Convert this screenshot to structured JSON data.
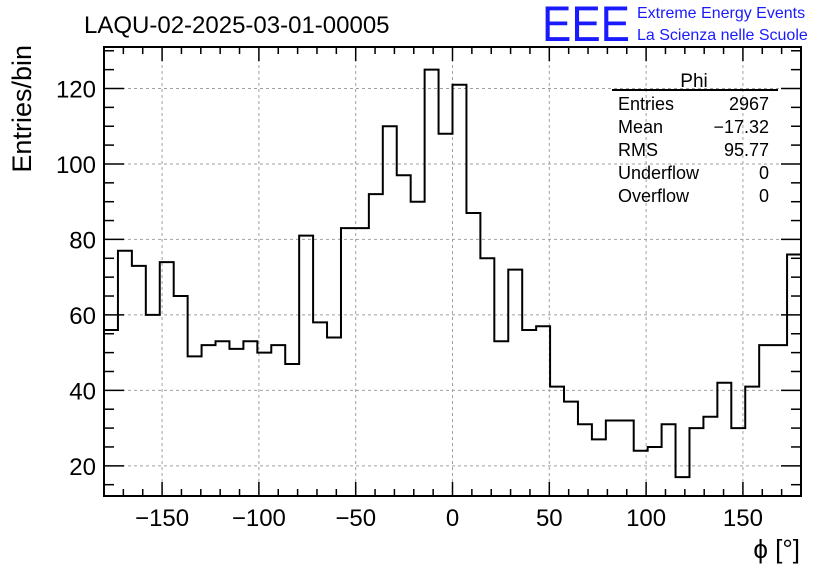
{
  "chart_data": {
    "type": "bar",
    "title": "LAQU-02-2025-03-01-00005",
    "xlabel": "ϕ [°]",
    "ylabel": "Entries/bin",
    "xlim": [
      -180,
      180
    ],
    "ylim": [
      12,
      131
    ],
    "grid": true,
    "x_ticks": [
      -150,
      -100,
      -50,
      0,
      50,
      100,
      150
    ],
    "x_tick_labels": [
      "−150",
      "−100",
      "−50",
      "0",
      "50",
      "100",
      "150"
    ],
    "y_ticks": [
      20,
      40,
      60,
      80,
      100,
      120
    ],
    "y_tick_labels": [
      "20",
      "40",
      "60",
      "80",
      "100",
      "120"
    ],
    "bin_edges_start": -180,
    "bin_width": 7.2,
    "values": [
      56,
      77,
      73,
      60,
      74,
      65,
      49,
      52,
      53,
      51,
      53,
      50,
      52,
      47,
      81,
      58,
      54,
      83,
      83,
      92,
      110,
      97,
      90,
      125,
      108,
      121,
      87,
      75,
      53,
      72,
      56,
      57,
      41,
      37,
      31,
      27,
      32,
      32,
      24,
      25,
      31,
      17,
      30,
      33,
      42,
      30,
      41,
      52,
      52,
      76
    ]
  },
  "stats_box": {
    "title": "Phi",
    "rows": [
      {
        "label": "Entries",
        "value": "2967"
      },
      {
        "label": "Mean",
        "value": "−17.32"
      },
      {
        "label": "RMS",
        "value": "95.77"
      },
      {
        "label": "Underflow",
        "value": "0"
      },
      {
        "label": "Overflow",
        "value": "0"
      }
    ]
  },
  "logo": {
    "text": "EEE",
    "line1": "Extreme Energy Events",
    "line2": "La Scienza nelle Scuole",
    "color": "#1a1aff"
  }
}
